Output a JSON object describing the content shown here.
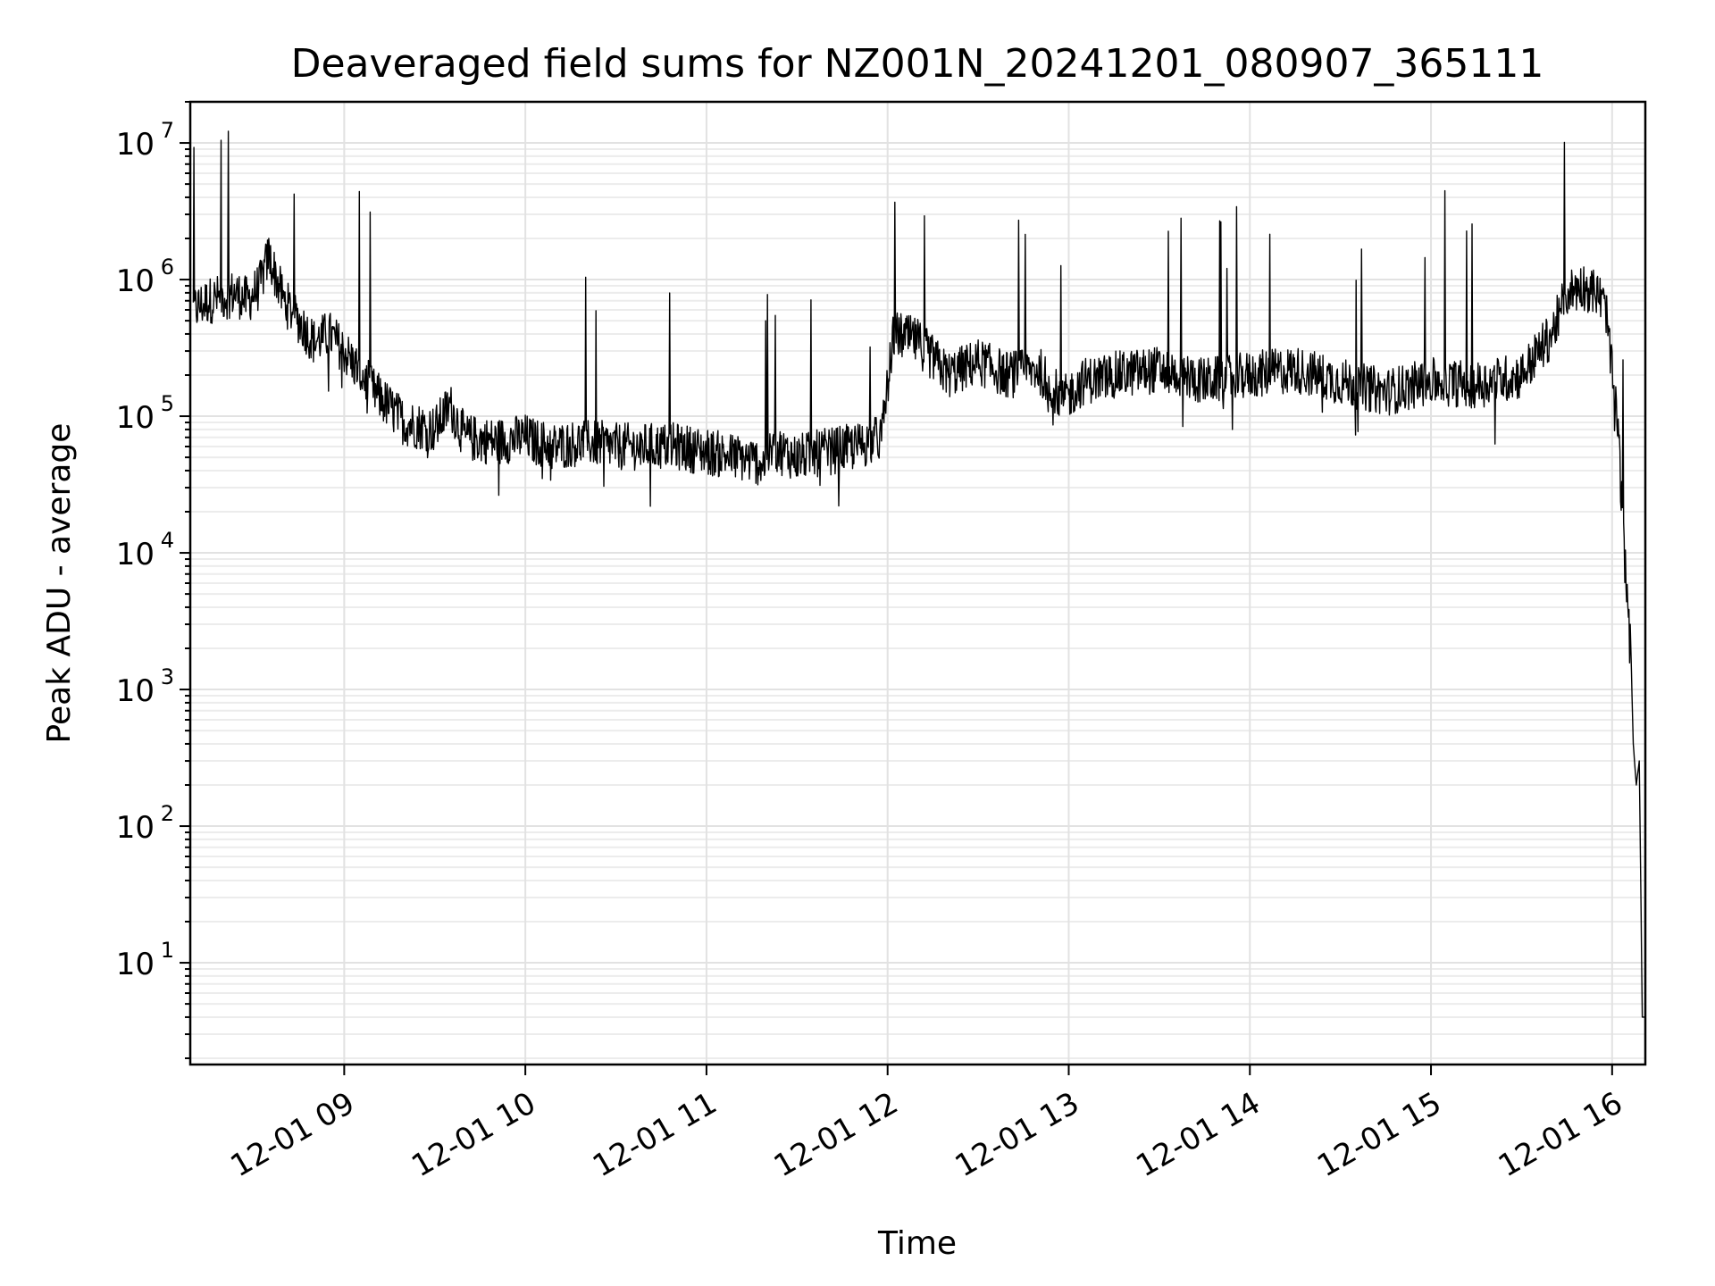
{
  "chart_data": {
    "type": "line",
    "title": "Deaveraged field sums for NZ001N_20241201_080907_365111",
    "xlabel": "Time",
    "ylabel": "Peak ADU - average",
    "x_scale": "time",
    "y_scale": "log",
    "xlim": [
      "2024-12-01 08:09",
      "2024-12-01 16:11"
    ],
    "ylim": [
      1.8,
      20000000
    ],
    "grid": true,
    "x_ticks": [
      "12-01 09",
      "12-01 10",
      "12-01 11",
      "12-01 12",
      "12-01 13",
      "12-01 14",
      "12-01 15",
      "12-01 16"
    ],
    "y_ticks": [
      {
        "base": "10",
        "exp": "1",
        "value": 10
      },
      {
        "base": "10",
        "exp": "2",
        "value": 100
      },
      {
        "base": "10",
        "exp": "3",
        "value": 1000
      },
      {
        "base": "10",
        "exp": "4",
        "value": 10000
      },
      {
        "base": "10",
        "exp": "5",
        "value": 100000
      },
      {
        "base": "10",
        "exp": "6",
        "value": 1000000
      },
      {
        "base": "10",
        "exp": "7",
        "value": 10000000
      }
    ],
    "series": [
      {
        "color": "#000000",
        "x": [
          "2024-12-01 08:10",
          "2024-12-01 08:15",
          "2024-12-01 08:20",
          "2024-12-01 08:24",
          "2024-12-01 08:28",
          "2024-12-01 08:32",
          "2024-12-01 08:35",
          "2024-12-01 08:40",
          "2024-12-01 08:45",
          "2024-12-01 08:50",
          "2024-12-01 08:55",
          "2024-12-01 09:00",
          "2024-12-01 09:10",
          "2024-12-01 09:20",
          "2024-12-01 09:30",
          "2024-12-01 09:35",
          "2024-12-01 09:40",
          "2024-12-01 09:50",
          "2024-12-01 10:00",
          "2024-12-01 10:03",
          "2024-12-01 10:10",
          "2024-12-01 10:20",
          "2024-12-01 10:30",
          "2024-12-01 10:40",
          "2024-12-01 10:50",
          "2024-12-01 11:00",
          "2024-12-01 11:10",
          "2024-12-01 11:20",
          "2024-12-01 11:22",
          "2024-12-01 11:25",
          "2024-12-01 11:30",
          "2024-12-01 11:40",
          "2024-12-01 11:50",
          "2024-12-01 11:58",
          "2024-12-01 12:02",
          "2024-12-01 12:10",
          "2024-12-01 12:20",
          "2024-12-01 12:30",
          "2024-12-01 12:40",
          "2024-12-01 12:50",
          "2024-12-01 12:58",
          "2024-12-01 13:05",
          "2024-12-01 13:15",
          "2024-12-01 13:30",
          "2024-12-01 13:45",
          "2024-12-01 14:00",
          "2024-12-01 14:15",
          "2024-12-01 14:30",
          "2024-12-01 14:45",
          "2024-12-01 15:00",
          "2024-12-01 15:15",
          "2024-12-01 15:30",
          "2024-12-01 15:40",
          "2024-12-01 15:45",
          "2024-12-01 15:50",
          "2024-12-01 15:55",
          "2024-12-01 15:58",
          "2024-12-01 16:00",
          "2024-12-01 16:02",
          "2024-12-01 16:04",
          "2024-12-01 16:06",
          "2024-12-01 16:07",
          "2024-12-01 16:08",
          "2024-12-01 16:09",
          "2024-12-01 16:10",
          "2024-12-01 16:11"
        ],
        "y": [
          600000,
          700000,
          750000,
          800000,
          700000,
          900000,
          1500000,
          700000,
          500000,
          350000,
          400000,
          300000,
          150000,
          90000,
          80000,
          120000,
          70000,
          65000,
          70000,
          65000,
          60000,
          65000,
          60000,
          60000,
          60000,
          55000,
          50000,
          45000,
          60000,
          55000,
          50000,
          55000,
          60000,
          70000,
          400000,
          350000,
          200000,
          250000,
          200000,
          220000,
          130000,
          180000,
          200000,
          220000,
          180000,
          200000,
          220000,
          180000,
          150000,
          180000,
          170000,
          200000,
          400000,
          800000,
          900000,
          800000,
          600000,
          200000,
          80000,
          10000,
          3000,
          400,
          200,
          300,
          4,
          4
        ]
      }
    ]
  }
}
